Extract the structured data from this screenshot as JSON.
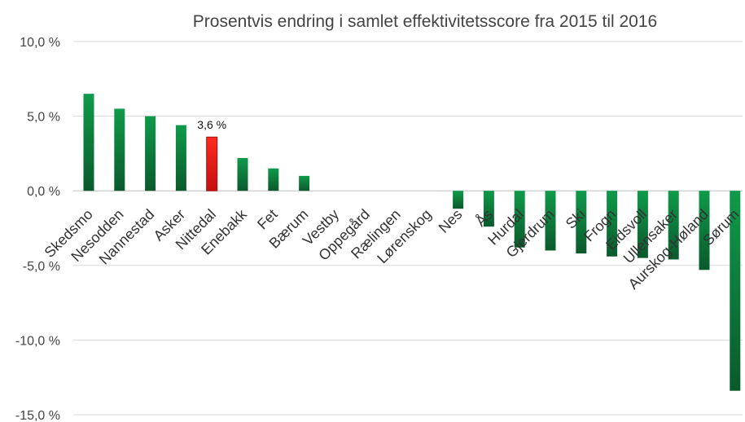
{
  "chart_data": {
    "type": "bar",
    "title": "Prosentvis endring i samlet effektivitetsscore fra 2015 til 2016",
    "xlabel": "",
    "ylabel": "",
    "ylim": [
      -15,
      10
    ],
    "yticks": [
      10,
      5,
      0,
      -5,
      -10,
      -15
    ],
    "ytick_labels": [
      "10,0 %",
      "5,0 %",
      "0,0 %",
      "-5,0 %",
      "-10,0 %",
      "-15,0 %"
    ],
    "grid": true,
    "legend": "none",
    "categories": [
      "Skedsmo",
      "Nesodden",
      "Nannestad",
      "Asker",
      "Nittedal",
      "Enebakk",
      "Fet",
      "Bærum",
      "Vestby",
      "Oppegård",
      "Rælingen",
      "Lørenskog",
      "Nes",
      "Ås",
      "Hurdal",
      "Gjerdrum",
      "Ski",
      "Frogn",
      "Eidsvoll",
      "Ullensaker",
      "Aurskog-Høland",
      "Sørum"
    ],
    "values": [
      6.5,
      5.5,
      5.0,
      4.4,
      3.6,
      2.2,
      1.5,
      1.0,
      0.0,
      0.0,
      0.0,
      0.0,
      -1.2,
      -2.4,
      -3.8,
      -4.0,
      -4.2,
      -4.4,
      -4.5,
      -4.6,
      -5.3,
      -13.4
    ],
    "highlight_index": 4,
    "highlight_label": "3,6 %",
    "colors": {
      "bar_light": "#0f9a4a",
      "bar_dark": "#0a5a2c",
      "highlight": "#e8221b",
      "highlight_dark": "#a01010"
    }
  }
}
